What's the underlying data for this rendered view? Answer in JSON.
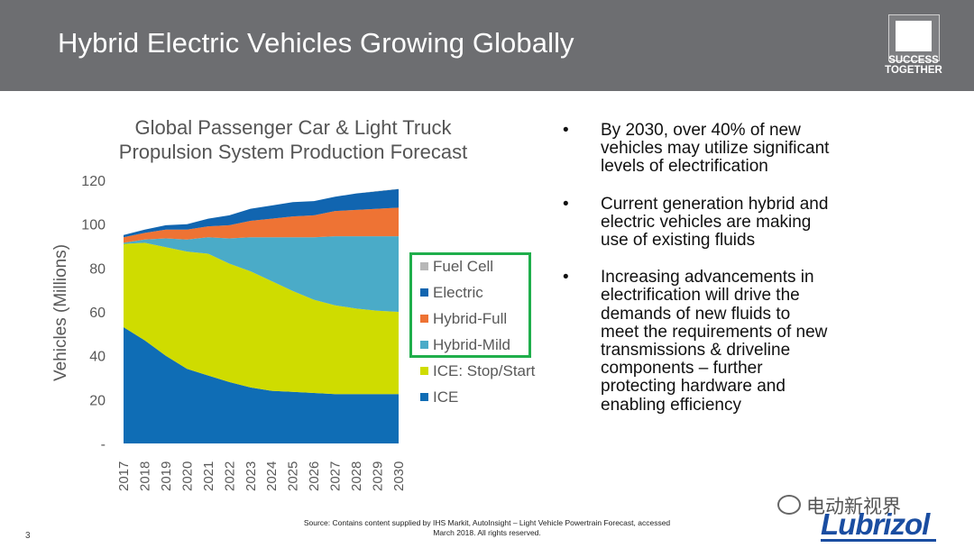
{
  "slide": {
    "title": "Hybrid Electric Vehicles Growing Globally",
    "logo_text": "SUCCESS TOGETHER",
    "page_number": "3",
    "source_note": "Source: Contains content supplied by IHS Markit, AutoInsight – Light Vehicle Powertrain Forecast, accessed March 2018. All rights reserved.",
    "watermark": "电动新视界",
    "brand": "Lubrizol"
  },
  "bullets": [
    "By 2030, over 40% of new vehicles may utilize significant levels of electrification",
    "Current generation hybrid and electric vehicles are making use of existing fluids",
    "Increasing advancements in electrification will drive the demands of new fluids to meet the requirements of new transmissions & driveline components – further protecting hardware and enabling efficiency"
  ],
  "chart_data": {
    "type": "area",
    "stacked": true,
    "title": "Global Passenger Car & Light Truck Propulsion System Production Forecast",
    "ylabel": "Vehicles (Millions)",
    "xlabel": "",
    "ylim": [
      0,
      120
    ],
    "yticks": [
      "-",
      "20",
      "40",
      "60",
      "80",
      "100",
      "120"
    ],
    "categories": [
      "2017",
      "2018",
      "2019",
      "2020",
      "2021",
      "2022",
      "2023",
      "2024",
      "2025",
      "2026",
      "2027",
      "2028",
      "2029",
      "2030"
    ],
    "legend_position": "right",
    "grid": false,
    "series": [
      {
        "name": "ICE",
        "color": "#0f6db5",
        "values": [
          53,
          47,
          40,
          34,
          31,
          28,
          25.5,
          24,
          23.5,
          23,
          22.5,
          22.5,
          22.5,
          22.5
        ]
      },
      {
        "name": "ICE: Stop/Start",
        "color": "#cfdc00",
        "values": [
          38,
          44.5,
          49.5,
          53.5,
          55.5,
          54,
          53,
          50,
          46,
          42.5,
          40.5,
          39,
          38,
          37.5
        ]
      },
      {
        "name": "Hybrid-Mild",
        "color": "#4aabc8",
        "values": [
          0.5,
          1.5,
          4,
          5.5,
          7.5,
          11.5,
          15.5,
          20,
          24.5,
          28.5,
          31.5,
          33,
          34,
          34.5
        ]
      },
      {
        "name": "Hybrid-Full",
        "color": "#ee7334",
        "values": [
          2.5,
          3,
          4,
          4.5,
          5,
          6,
          7.5,
          8.5,
          9.5,
          10,
          11.5,
          12,
          12.5,
          13
        ]
      },
      {
        "name": "Electric",
        "color": "#1165b0",
        "values": [
          1,
          1.5,
          2,
          2.5,
          3.5,
          4.5,
          5.5,
          6,
          6.5,
          6.5,
          6.5,
          7.5,
          8,
          8.5
        ]
      },
      {
        "name": "Fuel Cell",
        "color": "#b7b7b7",
        "values": [
          0,
          0,
          0,
          0,
          0,
          0,
          0,
          0,
          0,
          0,
          0,
          0,
          0.1,
          0.1
        ]
      }
    ],
    "legend_order": [
      "Fuel Cell",
      "Electric",
      "Hybrid-Full",
      "Hybrid-Mild",
      "ICE: Stop/Start",
      "ICE"
    ]
  }
}
